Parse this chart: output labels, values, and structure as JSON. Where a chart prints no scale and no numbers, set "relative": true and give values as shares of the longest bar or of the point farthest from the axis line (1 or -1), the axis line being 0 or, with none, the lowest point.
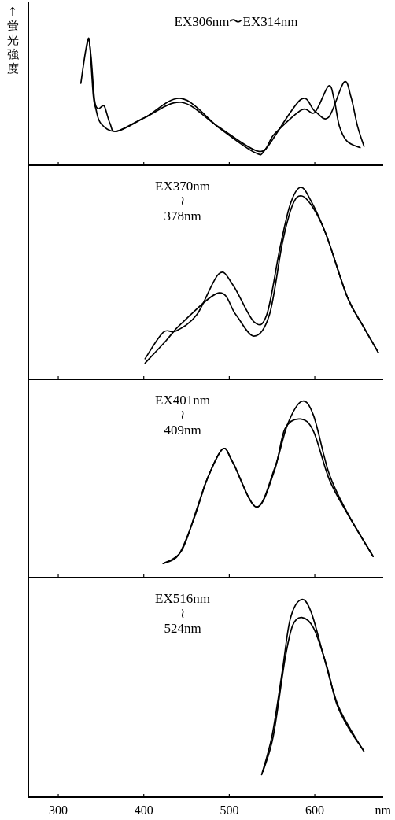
{
  "chart_data": [
    {
      "type": "line",
      "title": "EX306nm〜EX314nm",
      "ylabel": "↑蛍光強度",
      "relative": true,
      "xlim": [
        265,
        680
      ],
      "xticks": [
        300,
        400,
        500,
        600
      ],
      "tick_labels": false,
      "series": [
        {
          "color": "#000000",
          "x": [
            326.4,
            331.8,
            335.5,
            338.5,
            342.4,
            346.4,
            351.5,
            354.5,
            360.6,
            368.2,
            401.5,
            443.9,
            486.4,
            534.8,
            553.0,
            584.8,
            600.0,
            616.1,
            622.7,
            628.8,
            637.9,
            653.0
          ],
          "values": [
            0.65,
            0.9,
            1.0,
            0.85,
            0.52,
            0.45,
            0.47,
            0.46,
            0.33,
            0.27,
            0.38,
            0.5,
            0.31,
            0.11,
            0.25,
            0.44,
            0.42,
            0.63,
            0.52,
            0.31,
            0.19,
            0.14
          ]
        },
        {
          "color": "#000000",
          "x": [
            333.3,
            336.4,
            340.9,
            343.9,
            350.0,
            368.2,
            401.5,
            443.9,
            489.4,
            530.3,
            543.9,
            583.3,
            600.0,
            616.1,
            634.2,
            642.4,
            650.0,
            657.6
          ],
          "values": [
            0.94,
            0.99,
            0.56,
            0.45,
            0.33,
            0.27,
            0.38,
            0.53,
            0.29,
            0.1,
            0.14,
            0.52,
            0.43,
            0.38,
            0.66,
            0.54,
            0.31,
            0.15
          ]
        }
      ]
    },
    {
      "type": "line",
      "title": "EX370nm\n≀\n378nm",
      "relative": true,
      "xlim": [
        265,
        680
      ],
      "xticks": [
        300,
        400,
        500,
        600
      ],
      "tick_labels": false,
      "series": [
        {
          "color": "#000000",
          "x": [
            401.5,
            422.7,
            437.9,
            462.1,
            487.9,
            504.5,
            528.8,
            543.9,
            559.1,
            571.2,
            583.3,
            595.5,
            613.6,
            637.9,
            656.1,
            674.2
          ],
          "values": [
            0.107,
            0.244,
            0.252,
            0.337,
            0.55,
            0.49,
            0.3,
            0.337,
            0.68,
            0.91,
            1.0,
            0.93,
            0.75,
            0.43,
            0.28,
            0.14
          ]
        },
        {
          "color": "#000000",
          "x": [
            401.5,
            425.8,
            443.9,
            487.9,
            507.6,
            528.8,
            547.0,
            562.1,
            574.2,
            584.8,
            598.5,
            613.6,
            637.9,
            656.1,
            674.2
          ],
          "values": [
            0.084,
            0.2,
            0.29,
            0.45,
            0.337,
            0.225,
            0.337,
            0.71,
            0.91,
            0.955,
            0.89,
            0.75,
            0.43,
            0.28,
            0.14
          ]
        }
      ]
    },
    {
      "type": "line",
      "title": "EX401nm\n≀\n409nm",
      "relative": true,
      "xlim": [
        265,
        680
      ],
      "xticks": [
        300,
        400,
        500,
        600
      ],
      "tick_labels": false,
      "series": [
        {
          "color": "#000000",
          "x": [
            422.7,
            443.9,
            462.1,
            474.2,
            492.4,
            504.5,
            531.8,
            553.0,
            568.2,
            584.8,
            598.5,
            616.7,
            637.9,
            668.2
          ],
          "values": [
            0.08,
            0.15,
            0.39,
            0.56,
            0.73,
            0.65,
            0.4,
            0.62,
            0.87,
            1.0,
            0.92,
            0.59,
            0.37,
            0.12
          ]
        },
        {
          "color": "#000000",
          "x": [
            422.7,
            440.9,
            459.1,
            474.2,
            492.4,
            504.5,
            531.8,
            553.0,
            565.2,
            583.3,
            598.5,
            616.7,
            637.9,
            668.2
          ],
          "values": [
            0.08,
            0.13,
            0.34,
            0.56,
            0.73,
            0.65,
            0.4,
            0.61,
            0.845,
            0.9,
            0.83,
            0.56,
            0.365,
            0.12
          ]
        }
      ]
    },
    {
      "type": "line",
      "title": "EX516nm\n≀\n524nm",
      "xlabel": "nm",
      "relative": true,
      "xlim": [
        265,
        680
      ],
      "xticks": [
        300,
        400,
        500,
        600
      ],
      "tick_labels": "x",
      "series": [
        {
          "color": "#000000",
          "x": [
            537.9,
            550.0,
            562.1,
            571.2,
            583.9,
            595.5,
            610.6,
            625.8,
            640.9,
            657.6
          ],
          "values": [
            0.114,
            0.31,
            0.64,
            0.9,
            1.0,
            0.94,
            0.71,
            0.48,
            0.35,
            0.23
          ]
        },
        {
          "color": "#000000",
          "x": [
            539.5,
            551.5,
            565.2,
            574.2,
            584.8,
            598.5,
            613.6,
            625.8,
            640.9,
            656.5
          ],
          "values": [
            0.13,
            0.31,
            0.7,
            0.87,
            0.91,
            0.857,
            0.67,
            0.47,
            0.34,
            0.24
          ]
        }
      ]
    }
  ]
}
